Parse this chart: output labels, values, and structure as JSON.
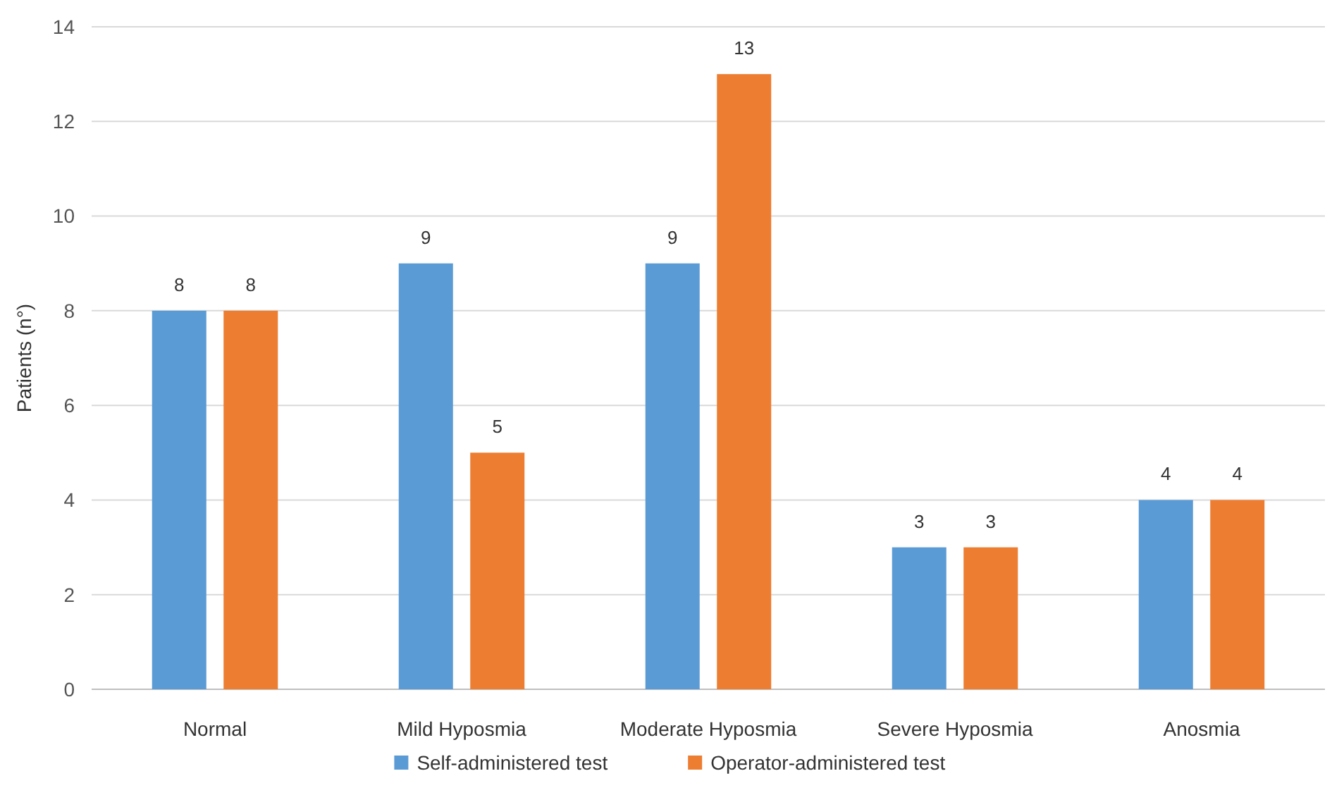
{
  "chart_data": {
    "type": "bar",
    "ylabel": "Patients (n°)",
    "categories": [
      "Normal",
      "Mild Hyposmia",
      "Moderate Hyposmia",
      "Severe Hyposmia",
      "Anosmia"
    ],
    "series": [
      {
        "name": "Self-administered test",
        "color": "#5b9bd5",
        "values": [
          8,
          9,
          9,
          3,
          4
        ]
      },
      {
        "name": "Operator-administered test",
        "color": "#ed7d31",
        "values": [
          8,
          5,
          13,
          3,
          4
        ]
      }
    ],
    "ylim": [
      0,
      14
    ],
    "yticks": [
      0,
      2,
      4,
      6,
      8,
      10,
      12,
      14
    ],
    "grid": "y",
    "legend": "bottom",
    "data_labels": true
  }
}
